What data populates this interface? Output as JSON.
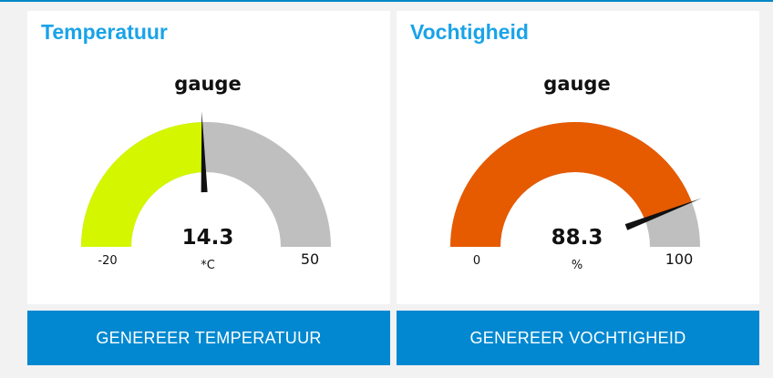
{
  "temperature": {
    "title": "Temperatuur",
    "gauge_label": "gauge",
    "value": 14.3,
    "value_text": "14.3",
    "unit": "*C",
    "min": -20,
    "min_text": "-20",
    "max": 50,
    "max_text": "50",
    "fill_color": "#d4f700",
    "track_color": "#bfbfbf"
  },
  "humidity": {
    "title": "Vochtigheid",
    "gauge_label": "gauge",
    "value": 88.3,
    "value_text": "88.3",
    "unit": "%",
    "min": 0,
    "min_text": "0",
    "max": 100,
    "max_text": "100",
    "fill_color": "#e65a00",
    "track_color": "#bfbfbf"
  },
  "buttons": {
    "temperature_label": "GENEREER TEMPERATUUR",
    "humidity_label": "GENEREER VOCHTIGHEID"
  },
  "colors": {
    "accent": "#1aa3e8",
    "button": "#0288d1",
    "needle": "#111111"
  }
}
